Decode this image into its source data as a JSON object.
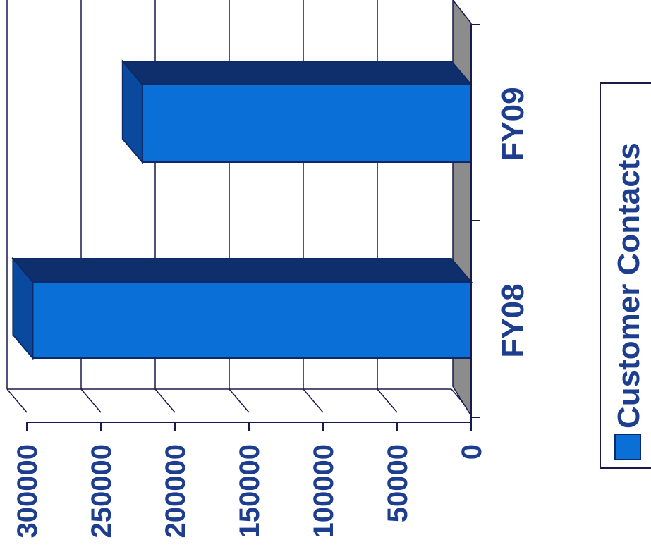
{
  "chart_data": {
    "type": "bar",
    "orientation": "rotated 90 degrees clockwise",
    "categories": [
      "FY08",
      "FY09"
    ],
    "series": [
      {
        "name": "Customer Contacts",
        "values": [
          296000,
          222000
        ]
      }
    ],
    "ylim": [
      0,
      300000
    ],
    "yticks": [
      "0",
      "50000",
      "100000",
      "150000",
      "200000",
      "250000",
      "300000"
    ],
    "grid": true,
    "legend_position": "right",
    "colors": {
      "bar_front": "#0a6fd6",
      "bar_top": "#0e2f6b",
      "bar_side": "#0a4a9e",
      "bar_outline": "#0d2a66",
      "wall_floor": "#8c8c8c",
      "text": "#1d3d8f",
      "grid": "#1a1a4a"
    }
  }
}
